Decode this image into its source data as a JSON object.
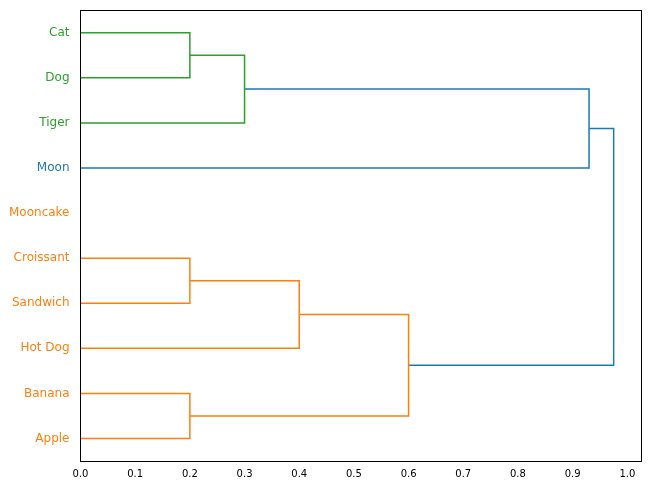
{
  "chart_data": {
    "type": "dendrogram",
    "orientation": "horizontal",
    "grid": false,
    "leaves": [
      {
        "name": "Cat",
        "color": "#2ca02c"
      },
      {
        "name": "Dog",
        "color": "#2ca02c"
      },
      {
        "name": "Tiger",
        "color": "#2ca02c"
      },
      {
        "name": "Moon",
        "color": "#1f77b4"
      },
      {
        "name": "Mooncake",
        "color": "#ff7f0e"
      },
      {
        "name": "Croissant",
        "color": "#ff7f0e"
      },
      {
        "name": "Sandwich",
        "color": "#ff7f0e"
      },
      {
        "name": "Hot Dog",
        "color": "#ff7f0e"
      },
      {
        "name": "Banana",
        "color": "#ff7f0e"
      },
      {
        "name": "Apple",
        "color": "#ff7f0e"
      }
    ],
    "merges": [
      {
        "left": 0,
        "right": 1,
        "height": 0.2,
        "color": "#2ca02c"
      },
      {
        "left": 10,
        "right": 2,
        "height": 0.3,
        "color": "#2ca02c"
      },
      {
        "left": 5,
        "right": 6,
        "height": 0.2,
        "color": "#ff7f0e"
      },
      {
        "left": 12,
        "right": 7,
        "height": 0.4,
        "color": "#ff7f0e"
      },
      {
        "left": 8,
        "right": 9,
        "height": 0.2,
        "color": "#ff7f0e"
      },
      {
        "left": 13,
        "right": 14,
        "height": 0.6,
        "color": "#ff7f0e"
      },
      {
        "left": 11,
        "right": 3,
        "height": 0.93,
        "color": "#1f77b4"
      },
      {
        "left": 16,
        "right": 15,
        "height": 0.975,
        "color": "#1f77b4"
      }
    ],
    "xlim": [
      0,
      1.025
    ],
    "xticks": [
      {
        "value": 0,
        "label": "0.0"
      },
      0.1,
      0.2,
      0.3,
      0.4,
      0.5,
      0.6,
      0.7,
      0.8,
      0.9,
      {
        "value": 1,
        "label": "1.0"
      }
    ]
  }
}
